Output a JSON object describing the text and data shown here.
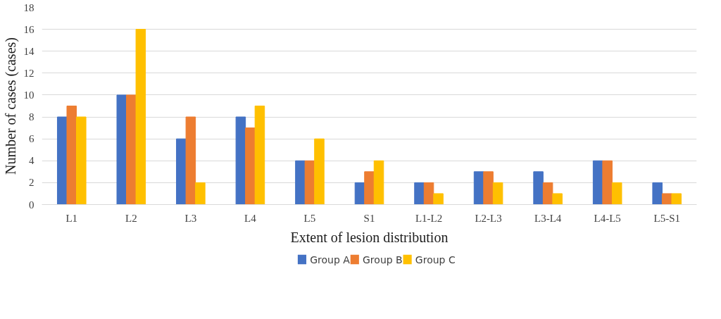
{
  "chart_data": {
    "type": "bar",
    "xlabel": "Extent of lesion distribution",
    "ylabel": "Number of cases (cases)",
    "categories": [
      "L1",
      "L2",
      "L3",
      "L4",
      "L5",
      "S1",
      "L1-L2",
      "L2-L3",
      "L3-L4",
      "L4-L5",
      "L5-S1"
    ],
    "series": [
      {
        "name": "Group A",
        "color": "#4472c4",
        "values": [
          8,
          10,
          6,
          8,
          4,
          2,
          2,
          3,
          3,
          4,
          2
        ]
      },
      {
        "name": "Group B",
        "color": "#ed7d31",
        "values": [
          9,
          10,
          8,
          7,
          4,
          3,
          2,
          3,
          2,
          4,
          1
        ]
      },
      {
        "name": "Group C",
        "color": "#ffc000",
        "values": [
          8,
          16,
          2,
          9,
          6,
          4,
          1,
          2,
          1,
          2,
          1
        ]
      }
    ],
    "ylim": [
      0,
      18
    ],
    "yticks": [
      0,
      2,
      4,
      6,
      8,
      10,
      12,
      14,
      16,
      18
    ],
    "grid": "y",
    "legend": "bottom"
  }
}
